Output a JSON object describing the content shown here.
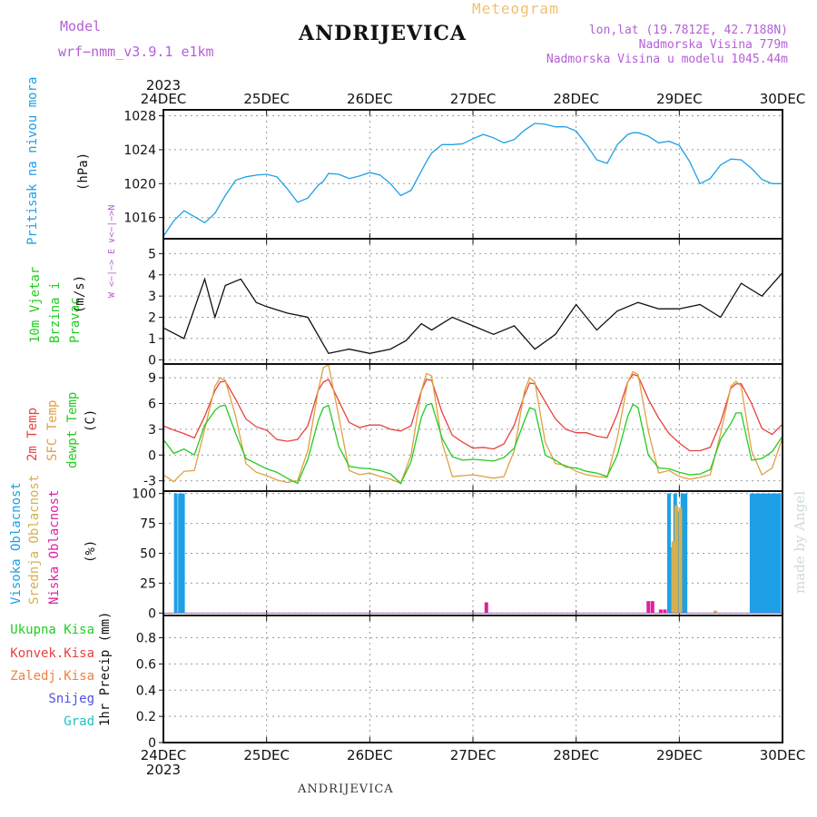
{
  "header": {
    "model_label": "Model",
    "model_name": "wrf−nmm_v3.9.1  e1km",
    "title": "Meteogram",
    "station": "ANDRIJEVICA",
    "lonlat": "lon,lat (19.7812E, 42.7188N)",
    "elevation": "Nadmorska Visina 779m",
    "model_elevation": "Nadmorska Visina u modelu 1045.44m"
  },
  "footer": {
    "station": "ANDRIJEVICA",
    "watermark": "made by Angel"
  },
  "colors": {
    "pressure": "#1ea0e6",
    "temp2m": "#e84040",
    "sfc_temp": "#e0a040",
    "dewpt": "#22cc22",
    "cloud_high": "#1ea0e6",
    "cloud_mid": "#d4b050",
    "cloud_low": "#e020a0",
    "precip_total": "#22cc22",
    "precip_conv": "#e84040",
    "precip_frozen": "#f08040",
    "precip_snow": "#5050e0",
    "precip_hail": "#20c0c0",
    "wind_speed": "#111111"
  },
  "chart_data": {
    "type": "line",
    "x_start_year": "2023",
    "x_end_year": "2023",
    "x": [
      "24DEC",
      "25DEC",
      "26DEC",
      "27DEC",
      "28DEC",
      "29DEC",
      "30DEC"
    ],
    "grid": true,
    "panels": [
      {
        "id": "pressure",
        "type": "line",
        "ylabel": "(hPa)",
        "ylabel_title": "Pritisak na nivou mora",
        "yticks": [
          1016,
          1020,
          1024,
          1028
        ],
        "ylim": [
          1013.5,
          1028.7
        ],
        "series": [
          {
            "color": "#1ea0e6",
            "x": [
              0,
              0.1,
              0.2,
              0.3,
              0.4,
              0.5,
              0.6,
              0.7,
              0.8,
              0.9,
              1.0,
              1.1,
              1.2,
              1.3,
              1.4,
              1.5,
              1.55,
              1.6,
              1.7,
              1.8,
              1.9,
              2.0,
              2.1,
              2.2,
              2.3,
              2.4,
              2.5,
              2.55,
              2.6,
              2.7,
              2.8,
              2.9,
              3.0,
              3.1,
              3.2,
              3.3,
              3.4,
              3.5,
              3.6,
              3.7,
              3.8,
              3.9,
              4.0,
              4.1,
              4.2,
              4.3,
              4.4,
              4.5,
              4.55,
              4.6,
              4.7,
              4.8,
              4.9,
              5.0,
              5.1,
              5.2,
              5.3,
              5.4,
              5.5,
              5.6,
              5.7,
              5.8,
              5.9,
              6.0
            ],
            "values": [
              1013.8,
              1015.6,
              1016.8,
              1016.1,
              1015.4,
              1016.5,
              1018.6,
              1020.4,
              1020.8,
              1021.0,
              1021.1,
              1020.8,
              1019.4,
              1017.8,
              1018.3,
              1019.8,
              1020.3,
              1021.2,
              1021.1,
              1020.6,
              1020.9,
              1021.3,
              1021.0,
              1020.0,
              1018.6,
              1019.2,
              1021.5,
              1022.6,
              1023.6,
              1024.6,
              1024.6,
              1024.7,
              1025.3,
              1025.8,
              1025.4,
              1024.8,
              1025.2,
              1026.3,
              1027.1,
              1027.0,
              1026.7,
              1026.7,
              1026.2,
              1024.6,
              1022.8,
              1022.4,
              1024.6,
              1025.8,
              1026.0,
              1026.0,
              1025.6,
              1024.8,
              1025.0,
              1024.5,
              1022.6,
              1020.0,
              1020.6,
              1022.2,
              1022.9,
              1022.8,
              1021.8,
              1020.5,
              1020.0,
              1020.0
            ]
          }
        ]
      },
      {
        "id": "wind",
        "type": "line",
        "ylabel": "(m/s)",
        "ylabel_title": "10m Vjetar Brzina i Pravac",
        "yticks": [
          0,
          1,
          2,
          3,
          4,
          5
        ],
        "ylim": [
          -0.2,
          5.7
        ],
        "compass_label": "W <−|−> E  ∨<−|−>N",
        "series": [
          {
            "color": "#111111",
            "x": [
              0.0,
              0.2,
              0.4,
              0.5,
              0.6,
              0.75,
              0.9,
              1.0,
              1.2,
              1.4,
              1.6,
              1.8,
              2.0,
              2.2,
              2.35,
              2.5,
              2.6,
              2.8,
              3.0,
              3.2,
              3.4,
              3.6,
              3.8,
              4.0,
              4.2,
              4.4,
              4.6,
              4.8,
              5.0,
              5.2,
              5.4,
              5.6,
              5.8,
              6.0
            ],
            "values": [
              1.5,
              1.0,
              3.8,
              2.0,
              3.5,
              3.8,
              2.7,
              2.5,
              2.2,
              2.0,
              0.3,
              0.5,
              0.3,
              0.5,
              0.9,
              1.7,
              1.4,
              2.0,
              1.6,
              1.2,
              1.6,
              0.5,
              1.2,
              2.6,
              1.4,
              2.3,
              2.7,
              2.4,
              2.4,
              2.6,
              2.0,
              3.6,
              3.0,
              4.1
            ]
          }
        ]
      },
      {
        "id": "temperature",
        "type": "line",
        "ylabel": "(C)",
        "ylabel_titles": [
          "2m Temp",
          "SFC Temp",
          "dewpt Temp"
        ],
        "yticks": [
          -3,
          0,
          3,
          6,
          9
        ],
        "ylim": [
          -4.2,
          10.6
        ],
        "series": [
          {
            "name": "2m Temp",
            "color": "#e84040",
            "x": [
              0.0,
              0.1,
              0.2,
              0.3,
              0.4,
              0.5,
              0.55,
              0.6,
              0.7,
              0.8,
              0.9,
              1.0,
              1.1,
              1.2,
              1.3,
              1.4,
              1.5,
              1.55,
              1.6,
              1.7,
              1.8,
              1.9,
              2.0,
              2.1,
              2.2,
              2.3,
              2.4,
              2.5,
              2.55,
              2.6,
              2.7,
              2.8,
              2.9,
              3.0,
              3.1,
              3.2,
              3.3,
              3.4,
              3.5,
              3.55,
              3.6,
              3.7,
              3.8,
              3.9,
              4.0,
              4.1,
              4.2,
              4.3,
              4.4,
              4.5,
              4.55,
              4.6,
              4.7,
              4.8,
              4.9,
              5.0,
              5.1,
              5.2,
              5.3,
              5.4,
              5.5,
              5.55,
              5.6,
              5.7,
              5.8,
              5.9,
              6.0
            ],
            "values": [
              3.4,
              2.9,
              2.5,
              2.0,
              4.5,
              7.5,
              8.5,
              8.6,
              6.5,
              4.2,
              3.3,
              2.9,
              1.8,
              1.6,
              1.8,
              3.4,
              7.5,
              8.5,
              8.8,
              6.3,
              3.8,
              3.2,
              3.5,
              3.5,
              3.0,
              2.8,
              3.4,
              7.5,
              8.8,
              8.7,
              5.0,
              2.3,
              1.5,
              0.8,
              0.9,
              0.7,
              1.3,
              3.5,
              7.0,
              8.4,
              8.3,
              6.2,
              4.2,
              3.0,
              2.6,
              2.6,
              2.2,
              2.0,
              4.8,
              8.5,
              9.4,
              9.2,
              6.5,
              4.3,
              2.5,
              1.4,
              0.5,
              0.5,
              0.9,
              3.8,
              7.8,
              8.3,
              8.3,
              6.0,
              3.1,
              2.4,
              3.6
            ]
          },
          {
            "name": "SFC Temp",
            "color": "#e0a040",
            "x": [
              0.0,
              0.1,
              0.2,
              0.3,
              0.4,
              0.5,
              0.55,
              0.6,
              0.7,
              0.8,
              0.9,
              1.0,
              1.1,
              1.2,
              1.3,
              1.4,
              1.5,
              1.55,
              1.6,
              1.7,
              1.8,
              1.9,
              2.0,
              2.1,
              2.2,
              2.3,
              2.4,
              2.5,
              2.55,
              2.6,
              2.7,
              2.8,
              2.9,
              3.0,
              3.1,
              3.2,
              3.3,
              3.4,
              3.5,
              3.55,
              3.6,
              3.7,
              3.8,
              3.9,
              4.0,
              4.1,
              4.2,
              4.3,
              4.4,
              4.5,
              4.55,
              4.6,
              4.7,
              4.8,
              4.9,
              5.0,
              5.1,
              5.2,
              5.3,
              5.4,
              5.5,
              5.55,
              5.6,
              5.7,
              5.8,
              5.9,
              6.0
            ],
            "values": [
              -2.3,
              -3.1,
              -1.9,
              -1.8,
              3.0,
              8.0,
              9.0,
              8.7,
              4.5,
              -1.0,
              -2.0,
              -2.4,
              -2.9,
              -3.2,
              -3.0,
              0.5,
              7.5,
              10.2,
              10.5,
              4.5,
              -1.8,
              -2.3,
              -2.1,
              -2.5,
              -2.8,
              -3.3,
              0.0,
              7.5,
              9.5,
              9.2,
              1.5,
              -2.5,
              -2.4,
              -2.3,
              -2.5,
              -2.7,
              -2.5,
              0.5,
              7.5,
              9.0,
              8.5,
              1.5,
              -1.0,
              -1.2,
              -1.9,
              -2.3,
              -2.5,
              -2.6,
              2.0,
              8.5,
              9.7,
              9.4,
              2.8,
              -2.1,
              -1.8,
              -2.5,
              -2.8,
              -2.6,
              -2.3,
              2.5,
              8.0,
              8.6,
              8.0,
              0.5,
              -2.3,
              -1.5,
              2.0
            ]
          },
          {
            "name": "dewpt Temp",
            "color": "#22cc22",
            "x": [
              0.0,
              0.1,
              0.2,
              0.3,
              0.4,
              0.5,
              0.55,
              0.6,
              0.7,
              0.8,
              0.9,
              1.0,
              1.1,
              1.2,
              1.3,
              1.4,
              1.5,
              1.55,
              1.6,
              1.7,
              1.8,
              1.9,
              2.0,
              2.1,
              2.2,
              2.3,
              2.4,
              2.5,
              2.55,
              2.6,
              2.7,
              2.8,
              2.9,
              3.0,
              3.1,
              3.2,
              3.3,
              3.4,
              3.5,
              3.55,
              3.6,
              3.7,
              3.8,
              3.9,
              4.0,
              4.1,
              4.2,
              4.3,
              4.4,
              4.5,
              4.55,
              4.6,
              4.7,
              4.8,
              4.9,
              5.0,
              5.1,
              5.2,
              5.3,
              5.4,
              5.5,
              5.55,
              5.6,
              5.7,
              5.8,
              5.9,
              6.0
            ],
            "values": [
              1.8,
              0.2,
              0.7,
              0.0,
              3.5,
              5.2,
              5.7,
              5.8,
              2.5,
              -0.4,
              -1.0,
              -1.6,
              -2.0,
              -2.7,
              -3.3,
              -0.5,
              4.0,
              5.5,
              5.8,
              1.0,
              -1.3,
              -1.5,
              -1.6,
              -1.8,
              -2.2,
              -3.3,
              -0.8,
              4.4,
              5.8,
              6.0,
              2.0,
              -0.2,
              -0.6,
              -0.5,
              -0.6,
              -0.7,
              -0.3,
              0.8,
              4.0,
              5.5,
              5.3,
              0.0,
              -0.6,
              -1.4,
              -1.5,
              -1.9,
              -2.1,
              -2.5,
              0.0,
              4.5,
              5.9,
              5.5,
              0.0,
              -1.5,
              -1.6,
              -2.0,
              -2.3,
              -2.2,
              -1.7,
              1.8,
              3.7,
              4.9,
              4.9,
              -0.6,
              -0.4,
              0.4,
              2.2
            ]
          }
        ]
      },
      {
        "id": "cloud",
        "type": "bar",
        "ylabel": "(%)",
        "ylabel_titles": [
          "Visoka Oblacnost",
          "Srednja Oblacnost",
          "Niska Oblacnost"
        ],
        "yticks": [
          0,
          25,
          50,
          75,
          100
        ],
        "ylim": [
          -2,
          102
        ],
        "series": [
          {
            "name": "Visoka Oblacnost",
            "color": "#1ea0e6",
            "x": [
              0.12,
              0.16,
              0.19,
              4.9,
              4.93,
              4.96,
              5.0,
              5.03,
              5.06,
              5.7,
              5.73,
              5.76,
              5.79,
              5.82,
              5.85,
              5.88,
              5.91,
              5.94,
              5.97
            ],
            "values": [
              100,
              100,
              100,
              100,
              55,
              100,
              85,
              100,
              100,
              100,
              100,
              100,
              100,
              100,
              100,
              100,
              100,
              100,
              100
            ]
          },
          {
            "name": "Srednja Oblacnost",
            "color": "#d4b050",
            "x": [
              4.94,
              4.97,
              5.01,
              5.35
            ],
            "values": [
              60,
              90,
              88,
              2
            ]
          },
          {
            "name": "Niska Oblacnost",
            "color": "#e020a0",
            "x": [
              3.13,
              4.7,
              4.74,
              4.82,
              4.86
            ],
            "values": [
              9,
              10,
              10,
              3,
              3
            ]
          }
        ]
      },
      {
        "id": "precip",
        "type": "bar",
        "ylabel": "1hr Precip (mm)",
        "yticks": [
          0,
          0.2,
          0.4,
          0.6,
          0.8
        ],
        "ylim": [
          0,
          0.97
        ],
        "legend": [
          "Ukupna Kisa",
          "Konvek.Kisa",
          "Zaledj.Kisa",
          "Snijeg",
          "Grad"
        ],
        "series": []
      }
    ]
  }
}
